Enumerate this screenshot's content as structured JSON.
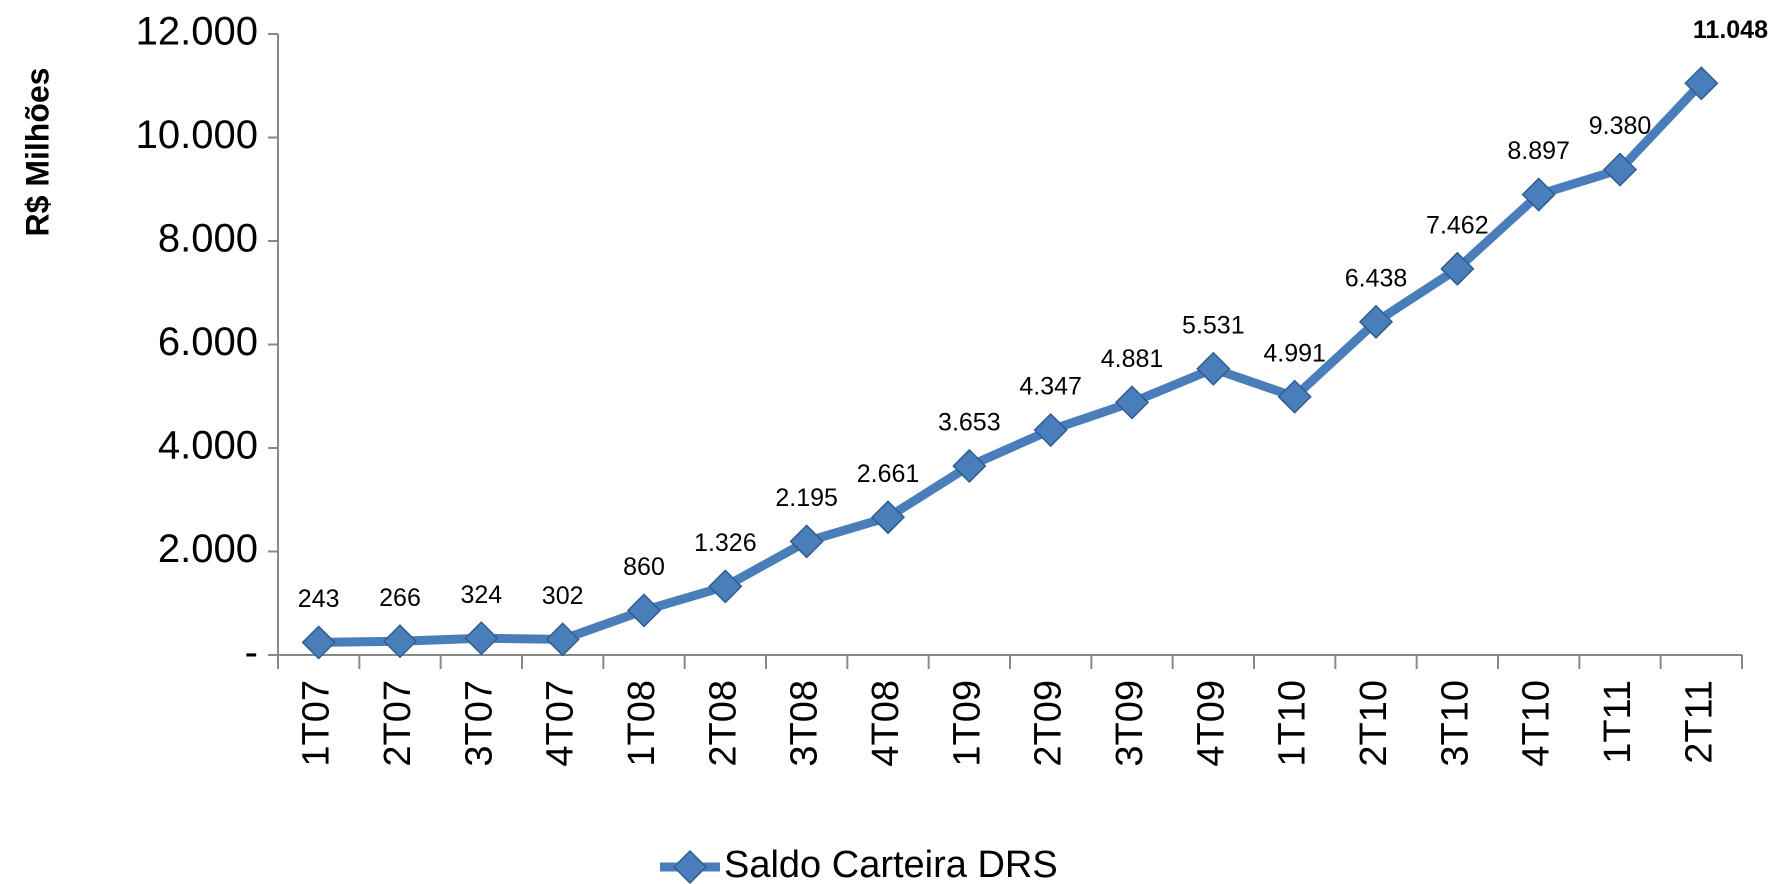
{
  "chart_data": {
    "type": "line",
    "y_label": "R$ Milhões",
    "categories": [
      "1T07",
      "2T07",
      "3T07",
      "4T07",
      "1T08",
      "2T08",
      "3T08",
      "4T08",
      "1T09",
      "2T09",
      "3T09",
      "4T09",
      "1T10",
      "2T10",
      "3T10",
      "4T10",
      "1T11",
      "2T11"
    ],
    "series": [
      {
        "name": "Saldo Carteira DRS",
        "color": "#4a7ebb",
        "values": [
          243,
          266,
          324,
          302,
          860,
          1326,
          2195,
          2661,
          3653,
          4347,
          4881,
          5531,
          4991,
          6438,
          7462,
          8897,
          9380,
          11048
        ],
        "value_labels": [
          "243",
          "266",
          "324",
          "302",
          "860",
          "1.326",
          "2.195",
          "2.661",
          "3.653",
          "4.347",
          "4.881",
          "5.531",
          "4.991",
          "6.438",
          "7.462",
          "8.897",
          "9.380",
          "11.048"
        ]
      }
    ],
    "ylim": [
      0,
      12000
    ],
    "yticks": [
      {
        "value": 0,
        "label": "-"
      },
      {
        "value": 2000,
        "label": "2.000"
      },
      {
        "value": 4000,
        "label": "4.000"
      },
      {
        "value": 6000,
        "label": "6.000"
      },
      {
        "value": 8000,
        "label": "8.000"
      },
      {
        "value": 10000,
        "label": "10.000"
      },
      {
        "value": 12000,
        "label": "12.000"
      }
    ],
    "legend": "bottom"
  }
}
